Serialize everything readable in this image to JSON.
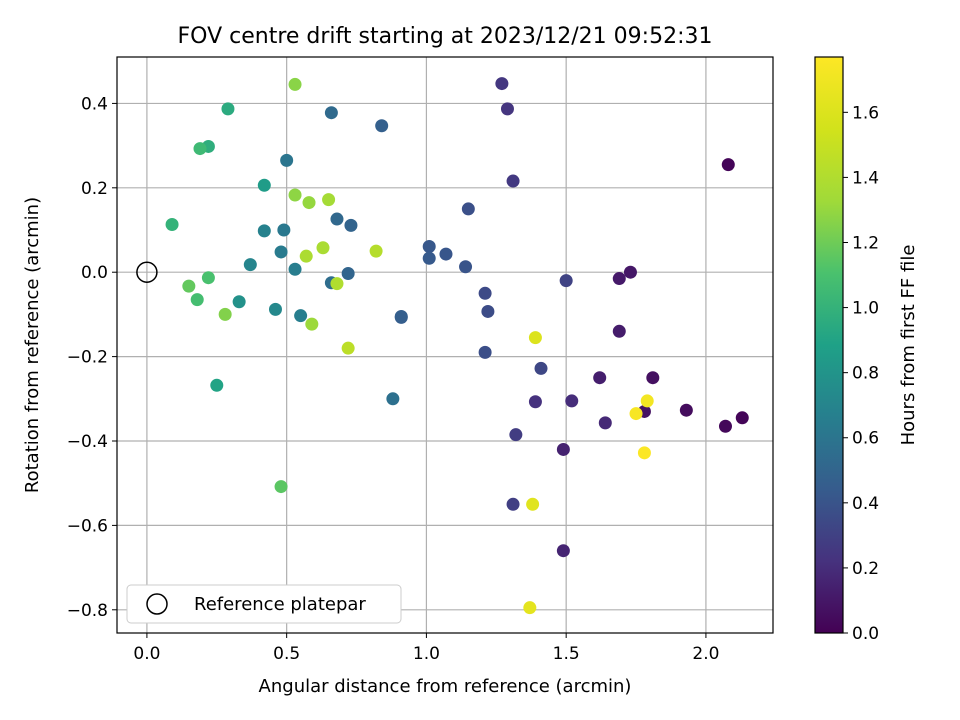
{
  "chart_data": {
    "type": "scatter",
    "title": "FOV centre drift starting at 2023/12/21 09:52:31",
    "xlabel": "Angular distance from reference (arcmin)",
    "ylabel": "Rotation from reference (arcmin)",
    "xlim": [
      -0.107,
      2.24
    ],
    "ylim": [
      -0.855,
      0.51
    ],
    "xticks": [
      0.0,
      0.5,
      1.0,
      1.5,
      2.0
    ],
    "xtick_labels": [
      "0.0",
      "0.5",
      "1.0",
      "1.5",
      "2.0"
    ],
    "yticks": [
      0.4,
      0.2,
      0.0,
      -0.2,
      -0.4,
      -0.6,
      -0.8
    ],
    "ytick_labels": [
      "0.4",
      "0.2",
      "0.0",
      "−0.2",
      "−0.4",
      "−0.6",
      "−0.8"
    ],
    "grid": true,
    "legend": {
      "position": "lower-left",
      "label": "Reference platepar"
    },
    "reference_point": {
      "x": 0.0,
      "y": 0.0
    },
    "colorbar": {
      "label": "Hours from first FF file",
      "colormap": "viridis",
      "range": [
        0.0,
        1.77
      ],
      "ticks": [
        0.0,
        0.2,
        0.4,
        0.6,
        0.8,
        1.0,
        1.2,
        1.4,
        1.6
      ],
      "tick_labels": [
        "0.0",
        "0.2",
        "0.4",
        "0.6",
        "0.8",
        "1.0",
        "1.2",
        "1.4",
        "1.6"
      ]
    },
    "points": [
      {
        "x": 2.08,
        "y": 0.255,
        "c": 0.02
      },
      {
        "x": 2.13,
        "y": -0.345,
        "c": 0.02
      },
      {
        "x": 2.07,
        "y": -0.365,
        "c": 0.03
      },
      {
        "x": 1.93,
        "y": -0.327,
        "c": 0.05
      },
      {
        "x": 1.81,
        "y": -0.25,
        "c": 0.07
      },
      {
        "x": 1.78,
        "y": -0.33,
        "c": 0.08
      },
      {
        "x": 1.73,
        "y": 0.0,
        "c": 0.1
      },
      {
        "x": 1.69,
        "y": -0.015,
        "c": 0.11
      },
      {
        "x": 1.69,
        "y": -0.14,
        "c": 0.12
      },
      {
        "x": 1.62,
        "y": -0.25,
        "c": 0.13
      },
      {
        "x": 1.49,
        "y": -0.42,
        "c": 0.15
      },
      {
        "x": 1.49,
        "y": -0.66,
        "c": 0.16
      },
      {
        "x": 1.64,
        "y": -0.357,
        "c": 0.18
      },
      {
        "x": 1.52,
        "y": -0.305,
        "c": 0.2
      },
      {
        "x": 1.39,
        "y": -0.307,
        "c": 0.22
      },
      {
        "x": 1.29,
        "y": 0.387,
        "c": 0.24
      },
      {
        "x": 1.27,
        "y": 0.447,
        "c": 0.25
      },
      {
        "x": 1.31,
        "y": 0.216,
        "c": 0.26
      },
      {
        "x": 1.32,
        "y": -0.385,
        "c": 0.28
      },
      {
        "x": 1.31,
        "y": -0.55,
        "c": 0.29
      },
      {
        "x": 1.5,
        "y": -0.02,
        "c": 0.31
      },
      {
        "x": 1.41,
        "y": -0.228,
        "c": 0.33
      },
      {
        "x": 1.21,
        "y": -0.05,
        "c": 0.35
      },
      {
        "x": 1.22,
        "y": -0.093,
        "c": 0.36
      },
      {
        "x": 1.21,
        "y": -0.19,
        "c": 0.37
      },
      {
        "x": 1.15,
        "y": 0.15,
        "c": 0.38
      },
      {
        "x": 1.14,
        "y": 0.013,
        "c": 0.4
      },
      {
        "x": 1.07,
        "y": 0.043,
        "c": 0.41
      },
      {
        "x": 1.01,
        "y": 0.061,
        "c": 0.42
      },
      {
        "x": 1.01,
        "y": 0.033,
        "c": 0.43
      },
      {
        "x": 0.91,
        "y": -0.107,
        "c": 0.45
      },
      {
        "x": 0.91,
        "y": -0.105,
        "c": 0.46
      },
      {
        "x": 0.84,
        "y": 0.347,
        "c": 0.47
      },
      {
        "x": 0.73,
        "y": 0.111,
        "c": 0.49
      },
      {
        "x": 0.72,
        "y": -0.003,
        "c": 0.5
      },
      {
        "x": 0.68,
        "y": 0.126,
        "c": 0.52
      },
      {
        "x": 0.66,
        "y": 0.378,
        "c": 0.53
      },
      {
        "x": 0.66,
        "y": -0.025,
        "c": 0.55
      },
      {
        "x": 0.88,
        "y": -0.3,
        "c": 0.57
      },
      {
        "x": 0.5,
        "y": 0.265,
        "c": 0.6
      },
      {
        "x": 0.49,
        "y": 0.1,
        "c": 0.62
      },
      {
        "x": 0.48,
        "y": 0.048,
        "c": 0.64
      },
      {
        "x": 0.53,
        "y": 0.007,
        "c": 0.65
      },
      {
        "x": 0.55,
        "y": -0.103,
        "c": 0.66
      },
      {
        "x": 0.42,
        "y": 0.098,
        "c": 0.68
      },
      {
        "x": 0.37,
        "y": 0.018,
        "c": 0.7
      },
      {
        "x": 0.46,
        "y": -0.088,
        "c": 0.72
      },
      {
        "x": 0.33,
        "y": -0.07,
        "c": 0.78
      },
      {
        "x": 0.42,
        "y": 0.206,
        "c": 0.85
      },
      {
        "x": 0.25,
        "y": -0.268,
        "c": 0.9
      },
      {
        "x": 0.29,
        "y": 0.387,
        "c": 0.95
      },
      {
        "x": 0.22,
        "y": 0.298,
        "c": 0.97
      },
      {
        "x": 0.09,
        "y": 0.113,
        "c": 1.0
      },
      {
        "x": 0.19,
        "y": 0.293,
        "c": 1.05
      },
      {
        "x": 0.18,
        "y": -0.065,
        "c": 1.08
      },
      {
        "x": 0.22,
        "y": -0.013,
        "c": 1.1
      },
      {
        "x": 0.48,
        "y": -0.508,
        "c": 1.15
      },
      {
        "x": 0.15,
        "y": -0.033,
        "c": 1.17
      },
      {
        "x": 0.28,
        "y": -0.1,
        "c": 1.25
      },
      {
        "x": 0.53,
        "y": 0.445,
        "c": 1.27
      },
      {
        "x": 0.53,
        "y": 0.183,
        "c": 1.28
      },
      {
        "x": 0.58,
        "y": 0.165,
        "c": 1.3
      },
      {
        "x": 0.59,
        "y": -0.123,
        "c": 1.32
      },
      {
        "x": 0.65,
        "y": 0.172,
        "c": 1.35
      },
      {
        "x": 0.63,
        "y": 0.058,
        "c": 1.37
      },
      {
        "x": 0.57,
        "y": 0.038,
        "c": 1.38
      },
      {
        "x": 0.68,
        "y": -0.027,
        "c": 1.4
      },
      {
        "x": 0.82,
        "y": 0.05,
        "c": 1.42
      },
      {
        "x": 0.72,
        "y": -0.18,
        "c": 1.45
      },
      {
        "x": 1.39,
        "y": -0.155,
        "c": 1.6
      },
      {
        "x": 1.38,
        "y": -0.55,
        "c": 1.62
      },
      {
        "x": 1.37,
        "y": -0.795,
        "c": 1.64
      },
      {
        "x": 1.79,
        "y": -0.305,
        "c": 1.72
      },
      {
        "x": 1.75,
        "y": -0.335,
        "c": 1.74
      },
      {
        "x": 1.78,
        "y": -0.428,
        "c": 1.76
      }
    ]
  }
}
